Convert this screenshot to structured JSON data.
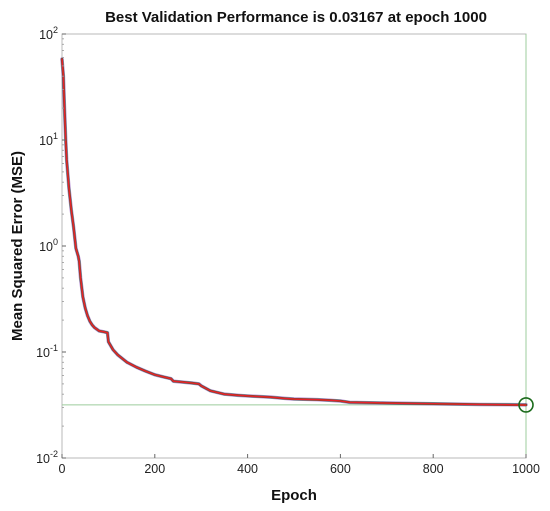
{
  "chart_data": {
    "type": "line",
    "title": "Best Validation Performance is 0.03167 at epoch 1000",
    "xlabel": "Epoch",
    "ylabel": "Mean Squared Error  (MSE)",
    "xlim": [
      0,
      1000
    ],
    "ylim": [
      0.01,
      100
    ],
    "yscale": "log",
    "grid": false,
    "x_ticks": [
      "0",
      "200",
      "400",
      "600",
      "800",
      "1000"
    ],
    "y_ticks": [
      {
        "base": "10",
        "exp": "-2"
      },
      {
        "base": "10",
        "exp": "-1"
      },
      {
        "base": "10",
        "exp": "0"
      },
      {
        "base": "10",
        "exp": "1"
      },
      {
        "base": "10",
        "exp": "2"
      }
    ],
    "colors": {
      "train": "#e8202a",
      "validation": "#2f6b2f",
      "test": "#7a2bb0",
      "best_line": "#9ccc9c",
      "best_marker": "#1b6b1b"
    },
    "best": {
      "epoch": 1000,
      "value": 0.03167
    },
    "series": [
      {
        "key": "test",
        "x": [
          0,
          3,
          5,
          8,
          10,
          15,
          20,
          25,
          30,
          35,
          37,
          40,
          45,
          50,
          55,
          60,
          65,
          70,
          80,
          90,
          98,
          100,
          110,
          120,
          140,
          160,
          180,
          200,
          220,
          235,
          240,
          260,
          280,
          295,
          300,
          320,
          340,
          350,
          380,
          400,
          450,
          480,
          500,
          550,
          580,
          600,
          620,
          700,
          800,
          900,
          1000
        ],
        "y": [
          58,
          40,
          22,
          10,
          6.5,
          3.5,
          2.2,
          1.5,
          0.95,
          0.8,
          0.72,
          0.5,
          0.33,
          0.26,
          0.22,
          0.195,
          0.18,
          0.17,
          0.158,
          0.155,
          0.152,
          0.125,
          0.105,
          0.094,
          0.08,
          0.072,
          0.066,
          0.061,
          0.058,
          0.056,
          0.053,
          0.052,
          0.051,
          0.05,
          0.048,
          0.043,
          0.041,
          0.04,
          0.039,
          0.0385,
          0.0375,
          0.0365,
          0.036,
          0.0355,
          0.035,
          0.0345,
          0.0335,
          0.033,
          0.0325,
          0.032,
          0.0318
        ]
      },
      {
        "key": "validation",
        "x": [
          0,
          3,
          5,
          8,
          10,
          15,
          20,
          25,
          30,
          35,
          37,
          40,
          45,
          50,
          55,
          60,
          65,
          70,
          80,
          90,
          98,
          100,
          110,
          120,
          140,
          160,
          180,
          200,
          220,
          235,
          240,
          260,
          280,
          295,
          300,
          320,
          340,
          350,
          380,
          400,
          450,
          480,
          500,
          550,
          580,
          600,
          620,
          700,
          800,
          900,
          1000
        ],
        "y": [
          58,
          40,
          22,
          10,
          6.5,
          3.5,
          2.2,
          1.5,
          0.95,
          0.8,
          0.72,
          0.5,
          0.33,
          0.26,
          0.22,
          0.195,
          0.18,
          0.17,
          0.158,
          0.155,
          0.152,
          0.125,
          0.105,
          0.094,
          0.08,
          0.072,
          0.066,
          0.061,
          0.058,
          0.056,
          0.053,
          0.052,
          0.051,
          0.05,
          0.048,
          0.043,
          0.041,
          0.04,
          0.039,
          0.0385,
          0.0375,
          0.0365,
          0.036,
          0.0355,
          0.035,
          0.0345,
          0.0335,
          0.033,
          0.0325,
          0.032,
          0.03167
        ]
      },
      {
        "key": "train",
        "x": [
          0,
          3,
          5,
          8,
          10,
          15,
          20,
          25,
          30,
          35,
          37,
          40,
          45,
          50,
          55,
          60,
          65,
          70,
          80,
          90,
          98,
          100,
          110,
          120,
          140,
          160,
          180,
          200,
          220,
          235,
          240,
          260,
          280,
          295,
          300,
          320,
          340,
          350,
          380,
          400,
          450,
          480,
          500,
          550,
          580,
          600,
          620,
          700,
          800,
          900,
          1000
        ],
        "y": [
          58,
          40,
          22,
          10,
          6.5,
          3.5,
          2.2,
          1.5,
          0.95,
          0.8,
          0.72,
          0.5,
          0.33,
          0.26,
          0.22,
          0.195,
          0.18,
          0.17,
          0.158,
          0.155,
          0.152,
          0.125,
          0.105,
          0.094,
          0.08,
          0.072,
          0.066,
          0.061,
          0.058,
          0.056,
          0.053,
          0.052,
          0.051,
          0.05,
          0.048,
          0.043,
          0.041,
          0.04,
          0.039,
          0.0385,
          0.0375,
          0.0365,
          0.036,
          0.0355,
          0.035,
          0.0345,
          0.0335,
          0.033,
          0.0325,
          0.032,
          0.0316
        ]
      }
    ]
  }
}
